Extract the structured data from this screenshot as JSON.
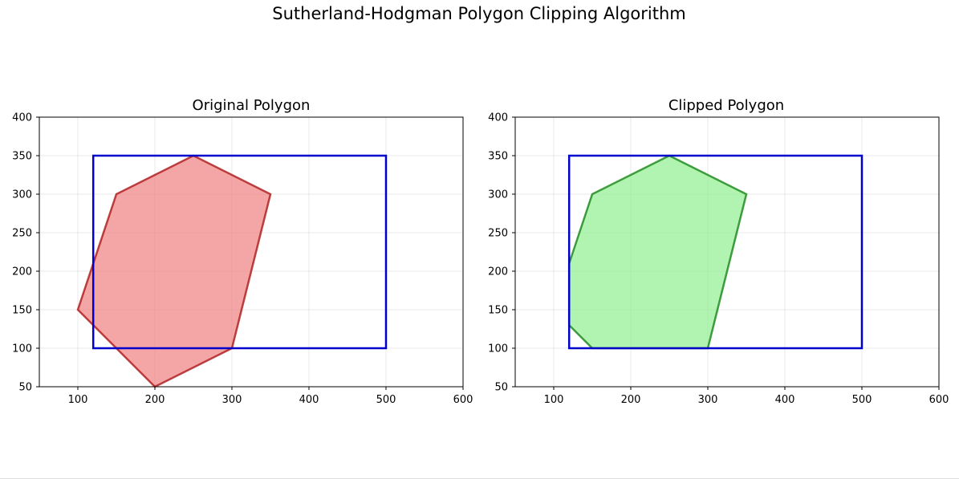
{
  "figure": {
    "suptitle": "Sutherland-Hodgman Polygon Clipping Algorithm"
  },
  "chart_data": [
    {
      "type": "polygon",
      "title": "Original Polygon",
      "xlim": [
        50,
        600
      ],
      "ylim": [
        50,
        400
      ],
      "xticks": [
        100,
        200,
        300,
        400,
        500,
        600
      ],
      "yticks": [
        50,
        100,
        150,
        200,
        250,
        300,
        350,
        400
      ],
      "grid": true,
      "clip_window": {
        "x": [
          120,
          500
        ],
        "y": [
          100,
          350
        ],
        "color": "#0000cc"
      },
      "polygon": {
        "points": [
          [
            100,
            150
          ],
          [
            200,
            50
          ],
          [
            300,
            100
          ],
          [
            350,
            300
          ],
          [
            250,
            350
          ],
          [
            150,
            300
          ]
        ],
        "fill": "#f08080",
        "edge": "#b22222"
      }
    },
    {
      "type": "polygon",
      "title": "Clipped Polygon",
      "xlim": [
        50,
        600
      ],
      "ylim": [
        50,
        400
      ],
      "xticks": [
        100,
        200,
        300,
        400,
        500,
        600
      ],
      "yticks": [
        50,
        100,
        150,
        200,
        250,
        300,
        350,
        400
      ],
      "grid": true,
      "clip_window": {
        "x": [
          120,
          500
        ],
        "y": [
          100,
          350
        ],
        "color": "#0000cc"
      },
      "polygon": {
        "points": [
          [
            120,
            130
          ],
          [
            150,
            100
          ],
          [
            300,
            100
          ],
          [
            350,
            300
          ],
          [
            250,
            350
          ],
          [
            150,
            300
          ],
          [
            120,
            210
          ]
        ],
        "fill": "#90ee90",
        "edge": "#228b22"
      }
    }
  ]
}
